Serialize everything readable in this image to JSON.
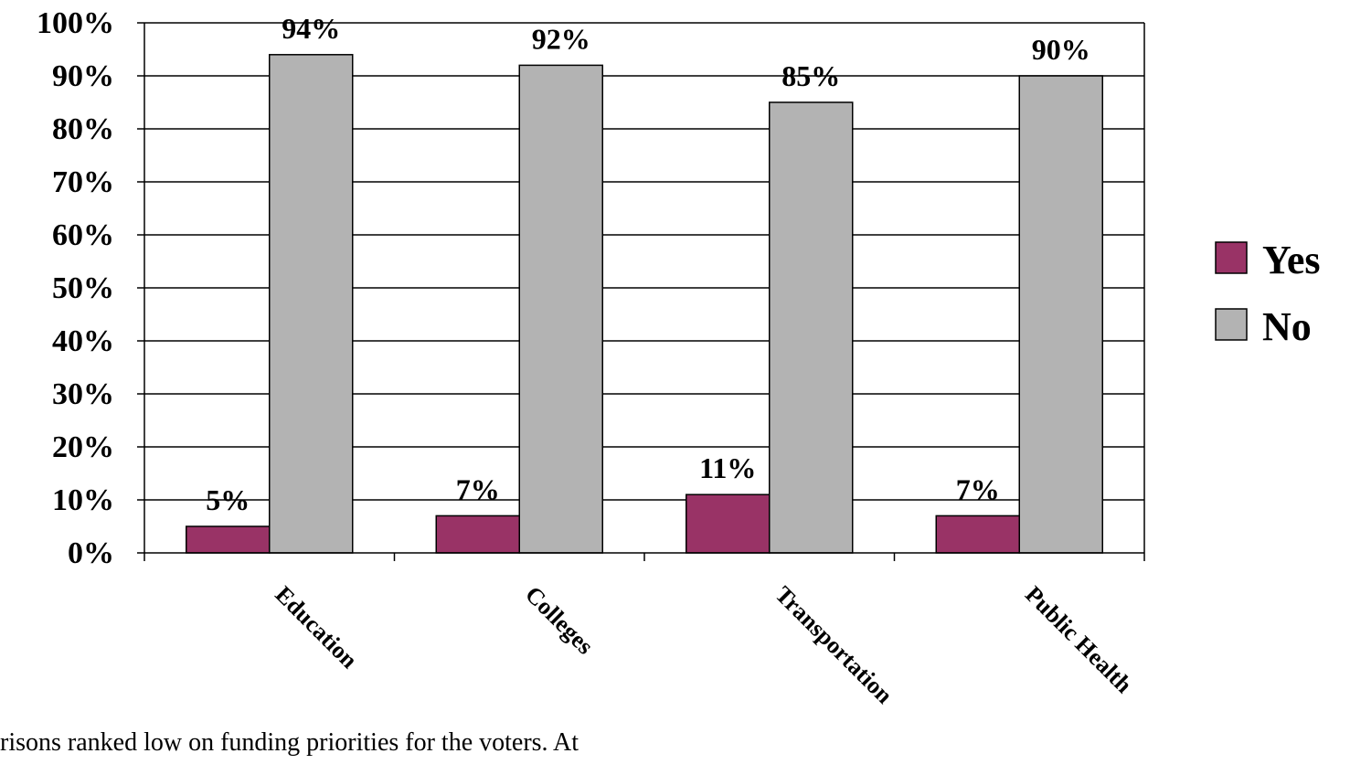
{
  "chart_data": {
    "type": "bar",
    "categories": [
      "Education",
      "Colleges",
      "Transportation",
      "Public Health"
    ],
    "series": [
      {
        "name": "Yes",
        "values": [
          5,
          7,
          11,
          7
        ],
        "labels": [
          "5%",
          "7%",
          "11%",
          "7%"
        ],
        "color": "#993366"
      },
      {
        "name": "No",
        "values": [
          94,
          92,
          85,
          90
        ],
        "labels": [
          "94%",
          "92%",
          "85%",
          "90%"
        ],
        "color": "#b3b3b3"
      }
    ],
    "ylim": [
      0,
      100
    ],
    "ytick_labels": [
      "0%",
      "10%",
      "20%",
      "30%",
      "40%",
      "50%",
      "60%",
      "70%",
      "80%",
      "90%",
      "100%"
    ],
    "grid": true,
    "legend_position": "right"
  },
  "caption": "risons ranked low on funding priorities for the voters.   At"
}
